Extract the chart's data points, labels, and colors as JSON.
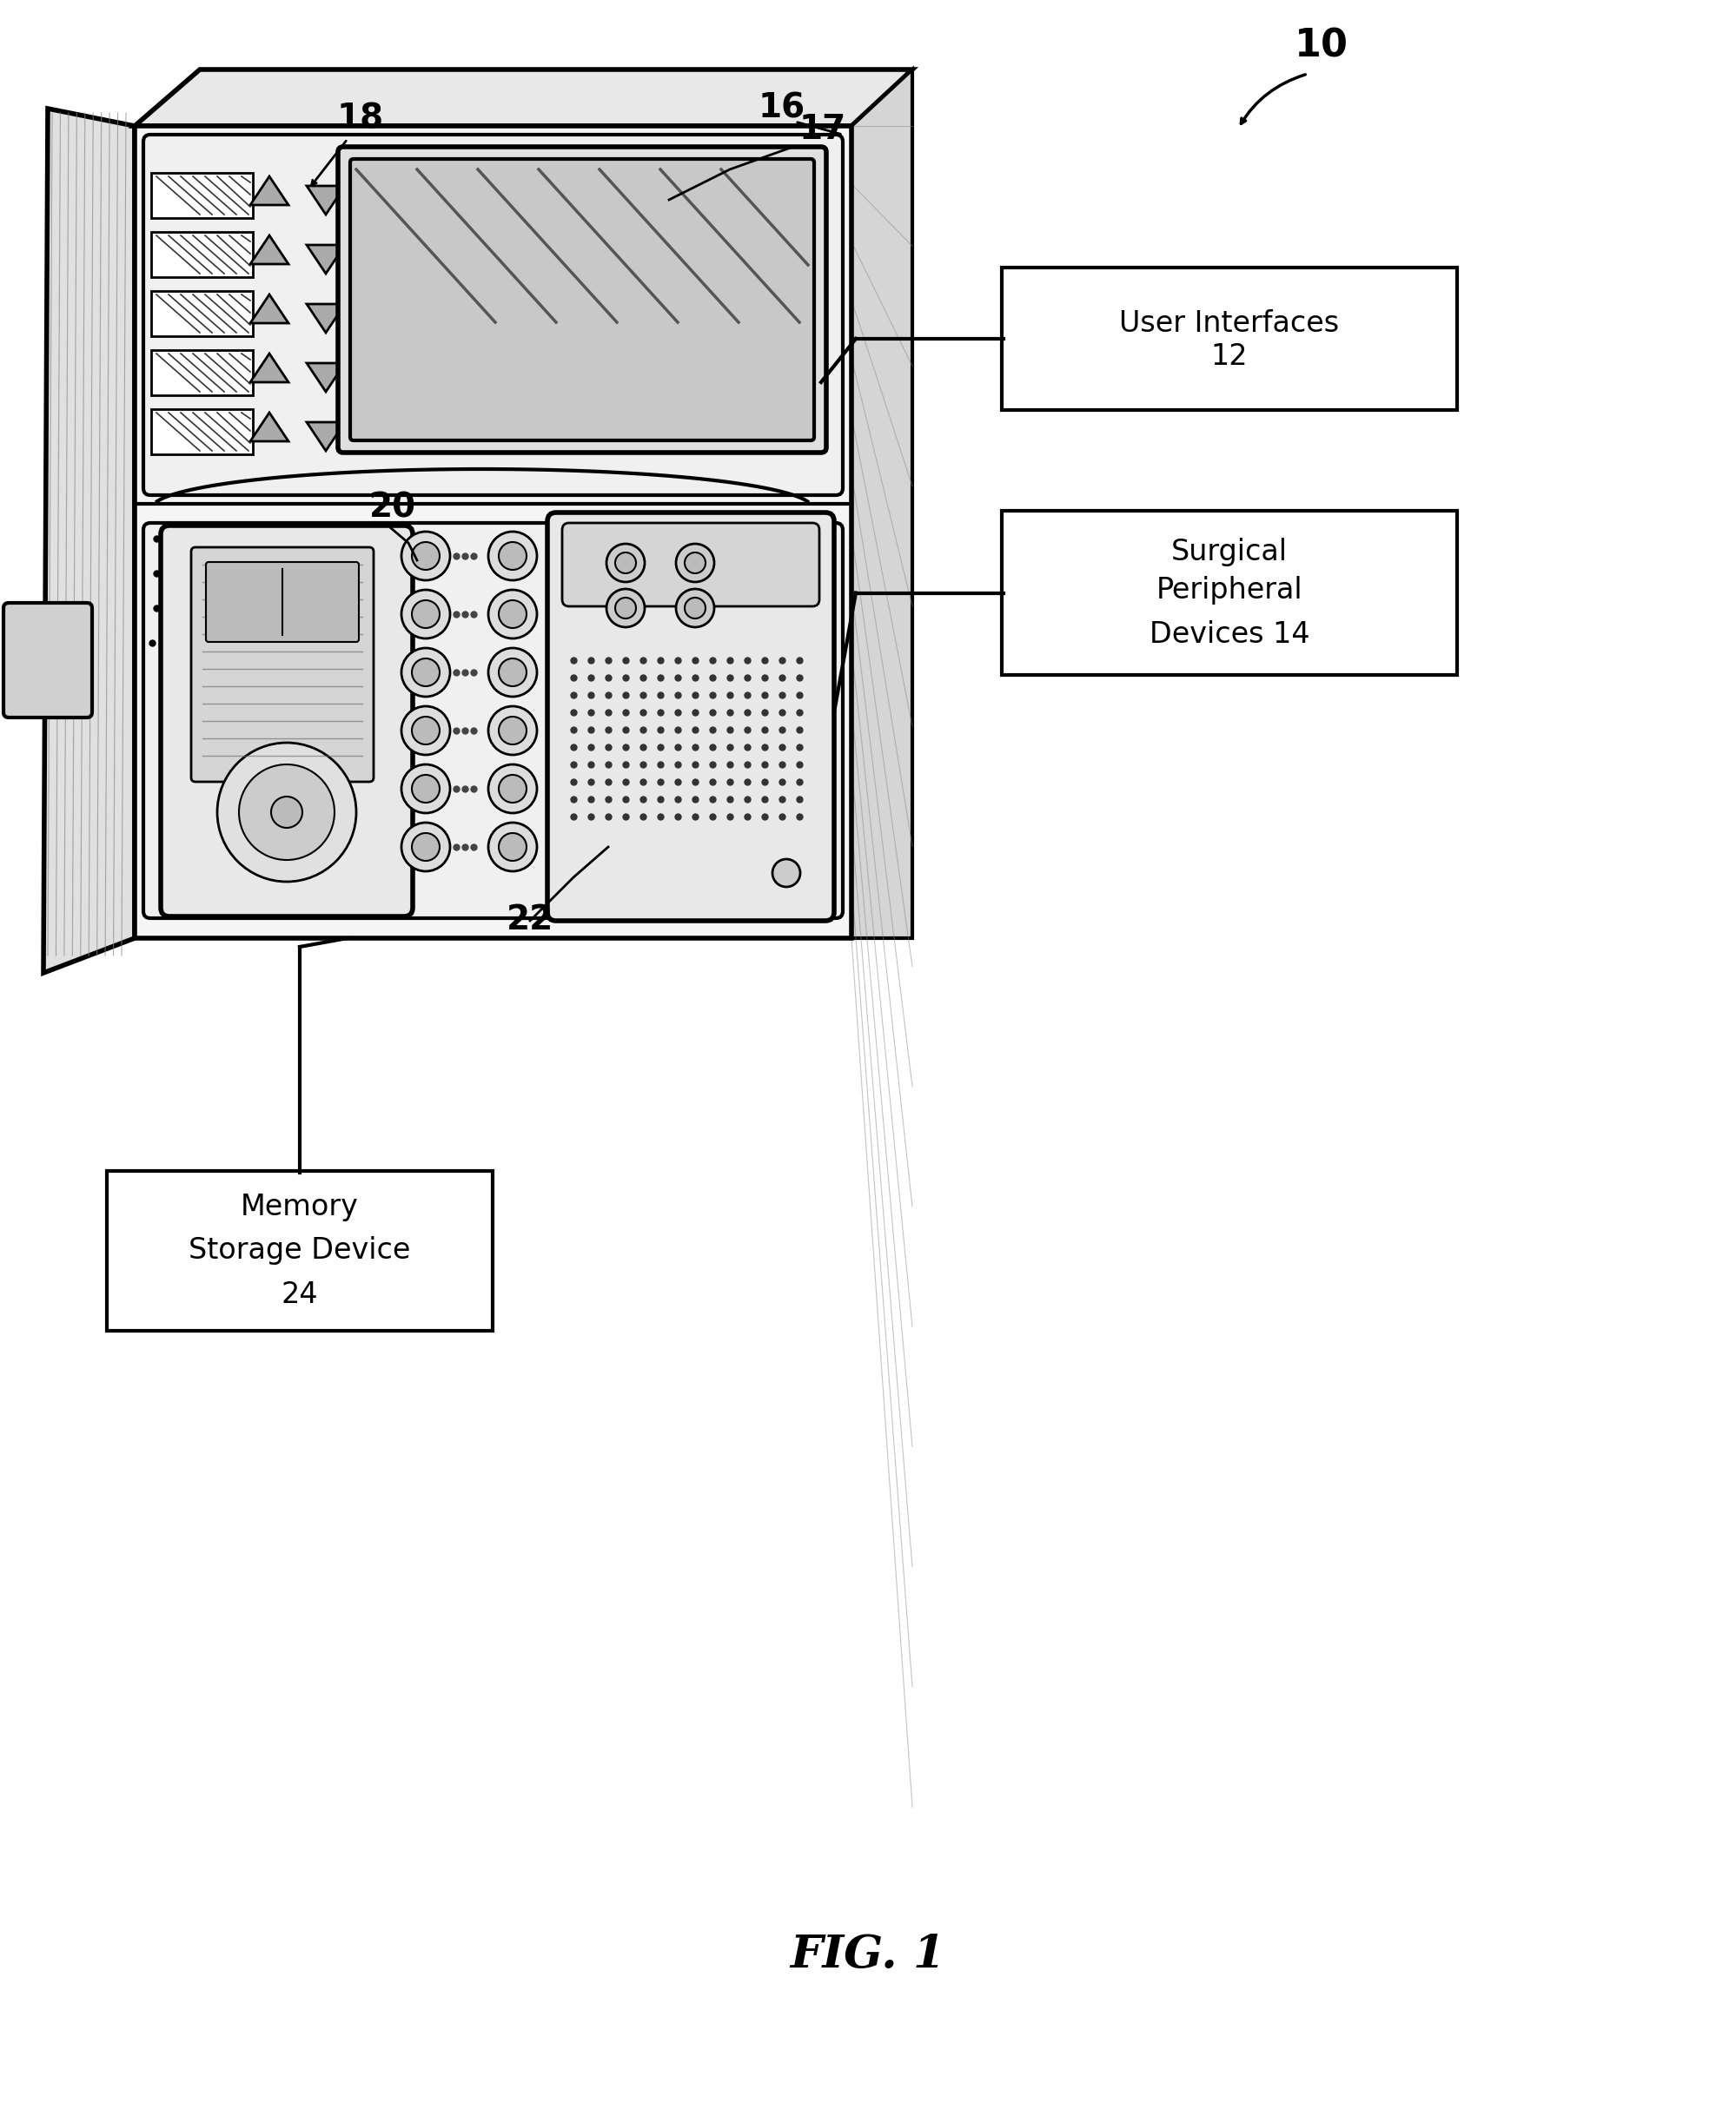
{
  "bg_color": "#ffffff",
  "line_color": "#000000",
  "fig_label": "FIG. 1",
  "label_10": "10",
  "label_16": "16",
  "label_17": "17",
  "label_18": "18",
  "label_20": "20",
  "label_22": "22",
  "box_user_interfaces_line1": "User Interfaces",
  "box_user_interfaces_line2": "12",
  "box_surgical_line1": "Surgical",
  "box_surgical_line2": "Peripheral",
  "box_surgical_line3": "Devices 14",
  "box_memory_line1": "Memory",
  "box_memory_line2": "Storage Device",
  "box_memory_line3": "24",
  "font_size_labels": 28,
  "font_size_fig": 38,
  "font_size_box": 24,
  "lw_main": 3.0,
  "lw_thick": 4.0,
  "lw_thin": 1.5
}
